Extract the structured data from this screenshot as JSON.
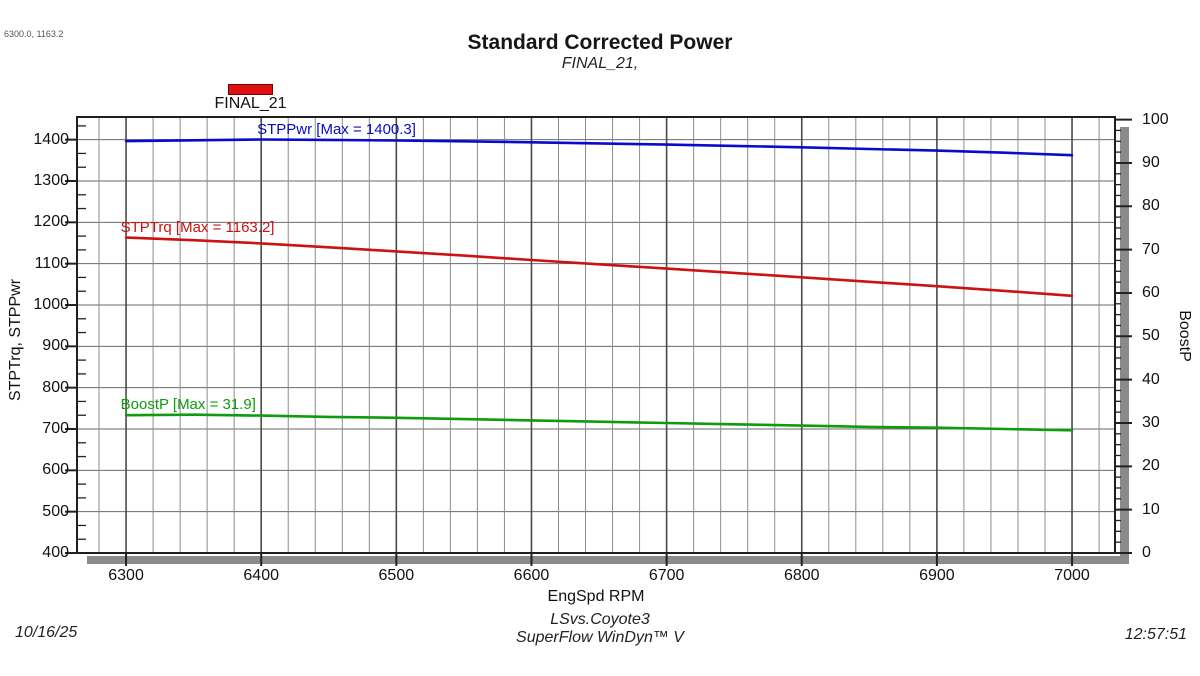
{
  "header": {
    "cursor_readout": "6300.0, 1163.2",
    "title": "Standard Corrected Power",
    "subtitle": "FINAL_21,"
  },
  "legend": {
    "label": "FINAL_21",
    "swatch_color": "#dd1111"
  },
  "footer": {
    "date": "10/16/25",
    "session": "LSvs.Coyote3",
    "software": "SuperFlow WinDyn™ V",
    "time": "12:57:51"
  },
  "colors": {
    "grid_minor": "#8c8c8c",
    "grid": "#6a6a6a",
    "grid_major": "#4a4a4a",
    "frame": "#1f1f1f",
    "shadow": "#8a8a8a",
    "tick": "#222222"
  },
  "chart_data": {
    "type": "line",
    "title": "Standard Corrected Power",
    "subtitle": "FINAL_21,",
    "xlabel": "EngSpd RPM",
    "ylabel_left": "STPTrq, STPPwr",
    "ylabel_right": "BoostP",
    "grid": true,
    "xlim": [
      6263.7,
      7031.8
    ],
    "ylim_left": [
      400,
      1454.8
    ],
    "ylim_right": [
      0,
      100.6
    ],
    "x_ticks": [
      6300,
      6400,
      6500,
      6600,
      6700,
      6800,
      6900,
      7000
    ],
    "y_left_ticks": [
      400,
      500,
      600,
      700,
      800,
      900,
      1000,
      1100,
      1200,
      1300,
      1400
    ],
    "y_right_ticks": [
      0,
      10,
      20,
      30,
      40,
      50,
      60,
      70,
      80,
      90,
      100
    ],
    "x_minor_step": 20,
    "y_left_minor_step": 33.333,
    "y_right_minor_step": 2.5,
    "x": [
      6300,
      6350,
      6400,
      6450,
      6500,
      6550,
      6600,
      6650,
      6700,
      6750,
      6800,
      6850,
      6900,
      6950,
      7000
    ],
    "series": [
      {
        "name": "STPPwr",
        "axis": "left",
        "color": "#0a0acd",
        "label": "STPPwr [Max = 1400.3]",
        "max": 1400.3,
        "label_x_rpm": 6397,
        "values": [
          1396.5,
          1398.5,
          1400.3,
          1399.5,
          1398.0,
          1396.0,
          1393.5,
          1391.0,
          1388.0,
          1385.0,
          1381.5,
          1377.5,
          1373.5,
          1368.5,
          1362.5
        ]
      },
      {
        "name": "STPTrq",
        "axis": "left",
        "color": "#cc1212",
        "label": "STPTrq [Max = 1163.2]",
        "max": 1163.2,
        "label_x_rpm": 6296,
        "values": [
          1163.2,
          1156.7,
          1149.1,
          1139.6,
          1129.6,
          1119.4,
          1108.9,
          1098.5,
          1088.1,
          1077.6,
          1067.0,
          1056.2,
          1045.5,
          1034.2,
          1022.3
        ]
      },
      {
        "name": "BoostP",
        "axis": "right",
        "color": "#0f9b0f",
        "label": "BoostP [Max = 31.9]",
        "max": 31.9,
        "label_x_rpm": 6296,
        "values": [
          31.8,
          31.9,
          31.7,
          31.4,
          31.2,
          30.9,
          30.6,
          30.3,
          30.0,
          29.7,
          29.4,
          29.1,
          28.9,
          28.6,
          28.3
        ]
      }
    ]
  }
}
